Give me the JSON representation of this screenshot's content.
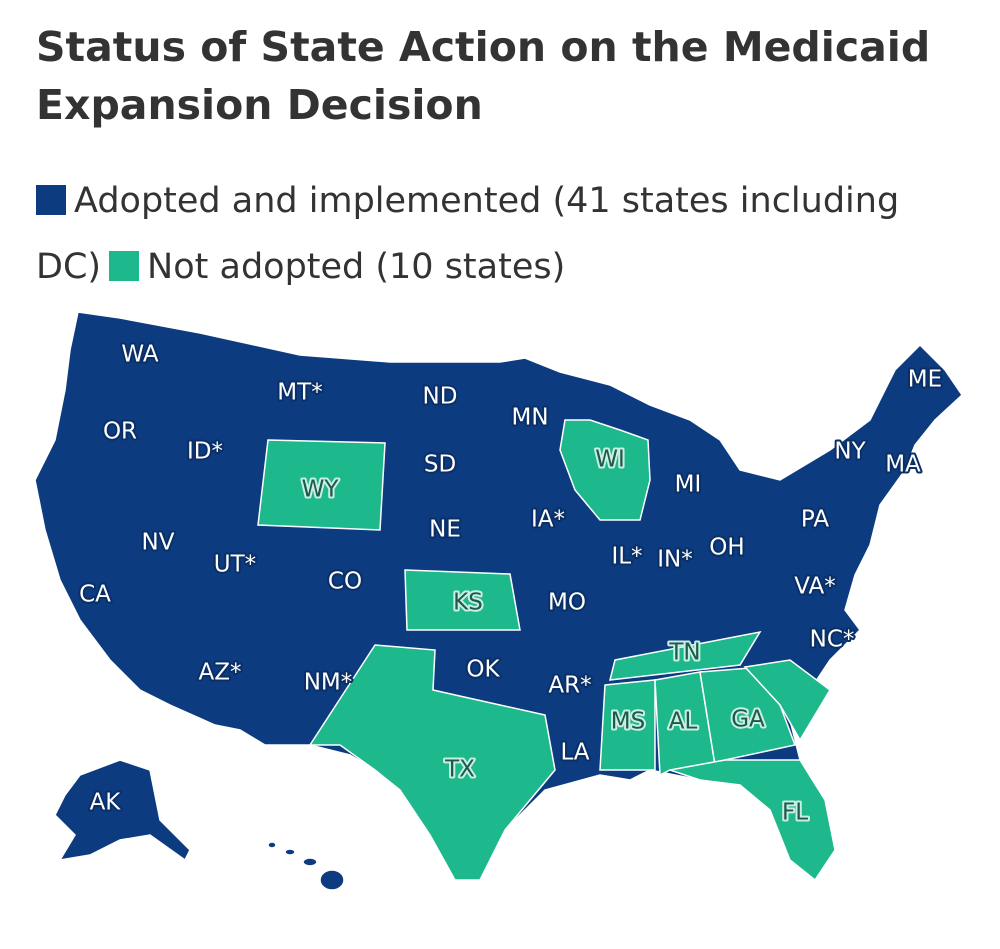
{
  "title": "Status of State Action on the Medicaid Expansion Decision",
  "legend": [
    {
      "label": "Adopted and implemented (41 states including DC)",
      "color": "#0d3b80"
    },
    {
      "label": "Not adopted (10 states)",
      "color": "#1db88b"
    }
  ],
  "states": [
    {
      "label": "WA",
      "status": 0
    },
    {
      "label": "MT*",
      "status": 0
    },
    {
      "label": "ND",
      "status": 0
    },
    {
      "label": "MN",
      "status": 0
    },
    {
      "label": "ME",
      "status": 0
    },
    {
      "label": "OR",
      "status": 0
    },
    {
      "label": "ID*",
      "status": 0
    },
    {
      "label": "WI",
      "status": 1
    },
    {
      "label": "SD",
      "status": 0
    },
    {
      "label": "NY",
      "status": 0
    },
    {
      "label": "MA",
      "status": 0
    },
    {
      "label": "WY",
      "status": 1
    },
    {
      "label": "MI",
      "status": 0
    },
    {
      "label": "NE",
      "status": 0
    },
    {
      "label": "IA*",
      "status": 0
    },
    {
      "label": "PA",
      "status": 0
    },
    {
      "label": "NV",
      "status": 0
    },
    {
      "label": "UT*",
      "status": 0
    },
    {
      "label": "IL*",
      "status": 0
    },
    {
      "label": "IN*",
      "status": 0
    },
    {
      "label": "OH",
      "status": 0
    },
    {
      "label": "CO",
      "status": 0
    },
    {
      "label": "KS",
      "status": 1
    },
    {
      "label": "MO",
      "status": 0
    },
    {
      "label": "VA*",
      "status": 0
    },
    {
      "label": "CA",
      "status": 0
    },
    {
      "label": "TN",
      "status": 1
    },
    {
      "label": "NC*",
      "status": 0
    },
    {
      "label": "AZ*",
      "status": 0
    },
    {
      "label": "NM*",
      "status": 0
    },
    {
      "label": "OK",
      "status": 0
    },
    {
      "label": "AR*",
      "status": 0
    },
    {
      "label": "MS",
      "status": 1
    },
    {
      "label": "AL",
      "status": 1
    },
    {
      "label": "GA",
      "status": 1
    },
    {
      "label": "LA",
      "status": 0
    },
    {
      "label": "TX",
      "status": 1
    },
    {
      "label": "FL",
      "status": 1
    },
    {
      "label": "AK",
      "status": 0
    }
  ]
}
